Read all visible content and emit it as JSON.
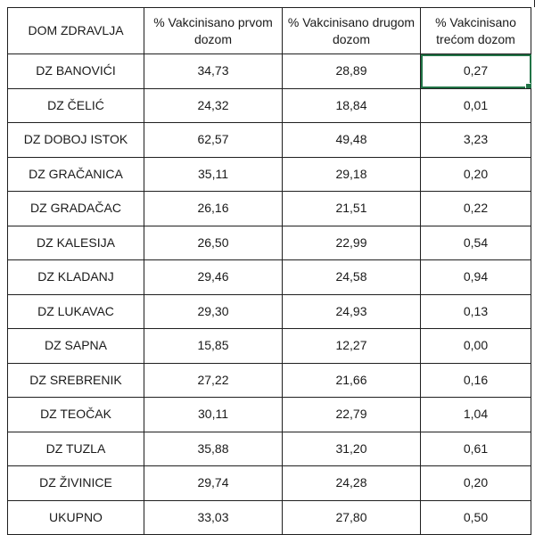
{
  "table": {
    "headers": [
      "DOM ZDRAVLJA",
      "% Vakcinisano prvom dozom",
      "% Vakcinisano drugom dozom",
      "% Vakcinisano trećom dozom"
    ],
    "rows": [
      [
        "DZ BANOVIĆI",
        "34,73",
        "28,89",
        "0,27"
      ],
      [
        "DZ ČELIĆ",
        "24,32",
        "18,84",
        "0,01"
      ],
      [
        "DZ DOBOJ ISTOK",
        "62,57",
        "49,48",
        "3,23"
      ],
      [
        "DZ GRAČANICA",
        "35,11",
        "29,18",
        "0,20"
      ],
      [
        "DZ GRADAČAC",
        "26,16",
        "21,51",
        "0,22"
      ],
      [
        "DZ KALESIJA",
        "26,50",
        "22,99",
        "0,54"
      ],
      [
        "DZ KLADANJ",
        "29,46",
        "24,58",
        "0,94"
      ],
      [
        "DZ LUKAVAC",
        "29,30",
        "24,93",
        "0,13"
      ],
      [
        "DZ SAPNA",
        "15,85",
        "12,27",
        "0,00"
      ],
      [
        "DZ SREBRENIK",
        "27,22",
        "21,66",
        "0,16"
      ],
      [
        "DZ TEOČAK",
        "30,11",
        "22,79",
        "1,04"
      ],
      [
        "DZ TUZLA",
        "35,88",
        "31,20",
        "0,61"
      ],
      [
        "DZ ŽIVINICE",
        "29,74",
        "24,28",
        "0,20"
      ],
      [
        "UKUPNO",
        "33,03",
        "27,80",
        "0,50"
      ]
    ]
  },
  "colors": {
    "selection": "#217346",
    "border": "#1f1f1f"
  }
}
